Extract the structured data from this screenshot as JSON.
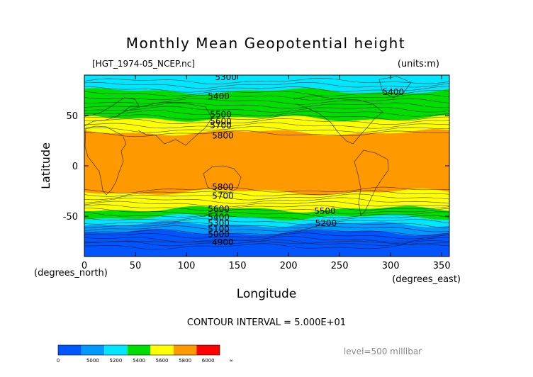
{
  "chart_data": {
    "type": "heatmap",
    "subtype": "filled-contour-map",
    "title": "Monthly Mean Geopotential height",
    "file_label": "[HGT_1974-05_NCEP.nc]",
    "units_label": "(units:m)",
    "xlabel": "Longitude",
    "ylabel": "Latitude",
    "x_unit_label": "(degrees_east)",
    "y_unit_label": "(degrees_north)",
    "xlim": [
      0,
      357.5
    ],
    "ylim": [
      -90,
      90
    ],
    "x_ticks": [
      0,
      50,
      100,
      150,
      200,
      250,
      300,
      350
    ],
    "y_ticks": [
      -50,
      0,
      50
    ],
    "contour_interval_text": "CONTOUR INTERVAL = 5.000E+01",
    "level_text": "level=500 millibar",
    "contour_labels": [
      {
        "text": "5300",
        "x": 128,
        "y": 88
      },
      {
        "text": "5400",
        "x": 121,
        "y": 69
      },
      {
        "text": "5500",
        "x": 123,
        "y": 51
      },
      {
        "text": "5600",
        "x": 123,
        "y": 44
      },
      {
        "text": "5700",
        "x": 123,
        "y": 40
      },
      {
        "text": "5800",
        "x": 125,
        "y": 30
      },
      {
        "text": "5400",
        "x": 292,
        "y": 73
      },
      {
        "text": "5800",
        "x": 125,
        "y": -21
      },
      {
        "text": "5700",
        "x": 125,
        "y": -30
      },
      {
        "text": "5600",
        "x": 121,
        "y": -43
      },
      {
        "text": "5500",
        "x": 225,
        "y": -45
      },
      {
        "text": "5400",
        "x": 121,
        "y": -51
      },
      {
        "text": "5300",
        "x": 121,
        "y": -57
      },
      {
        "text": "5200",
        "x": 226,
        "y": -57
      },
      {
        "text": "5100",
        "x": 121,
        "y": -63
      },
      {
        "text": "5000",
        "x": 121,
        "y": -68
      },
      {
        "text": "4900",
        "x": 125,
        "y": -76
      }
    ],
    "bands": [
      {
        "value_range": [
          5300,
          5400
        ],
        "lat_range": [
          74,
          90
        ],
        "color": "#00e6ff"
      },
      {
        "value_range": [
          5400,
          5600
        ],
        "lat_range": [
          47,
          74
        ],
        "color": "#00dd00"
      },
      {
        "value_range": [
          5600,
          5800
        ],
        "lat_range": [
          33,
          47
        ],
        "color": "#ffff00"
      },
      {
        "value_range": [
          5800,
          6000
        ],
        "lat_range": [
          -26,
          33
        ],
        "color": "#ff9900"
      },
      {
        "value_range": [
          5600,
          5800
        ],
        "lat_range": [
          -43,
          -26
        ],
        "color": "#ffff00"
      },
      {
        "value_range": [
          5400,
          5600
        ],
        "lat_range": [
          -51,
          -43
        ],
        "color": "#00dd00"
      },
      {
        "value_range": [
          5200,
          5400
        ],
        "lat_range": [
          -58,
          -51
        ],
        "color": "#00e6ff"
      },
      {
        "value_range": [
          5000,
          5200
        ],
        "lat_range": [
          -66,
          -58
        ],
        "color": "#0099ff"
      },
      {
        "value_range": [
          0,
          5000
        ],
        "lat_range": [
          -90,
          -66
        ],
        "color": "#0055ff"
      }
    ],
    "colorbar": {
      "colors": [
        "#0055ff",
        "#0099ff",
        "#00e6ff",
        "#00dd00",
        "#ffff00",
        "#ff9900",
        "#ff0000"
      ],
      "labels": [
        "0",
        "5000",
        "5200",
        "5400",
        "5600",
        "5800",
        "6000",
        "∞"
      ]
    },
    "grid": false,
    "legend": "colorbar bottom-left"
  }
}
